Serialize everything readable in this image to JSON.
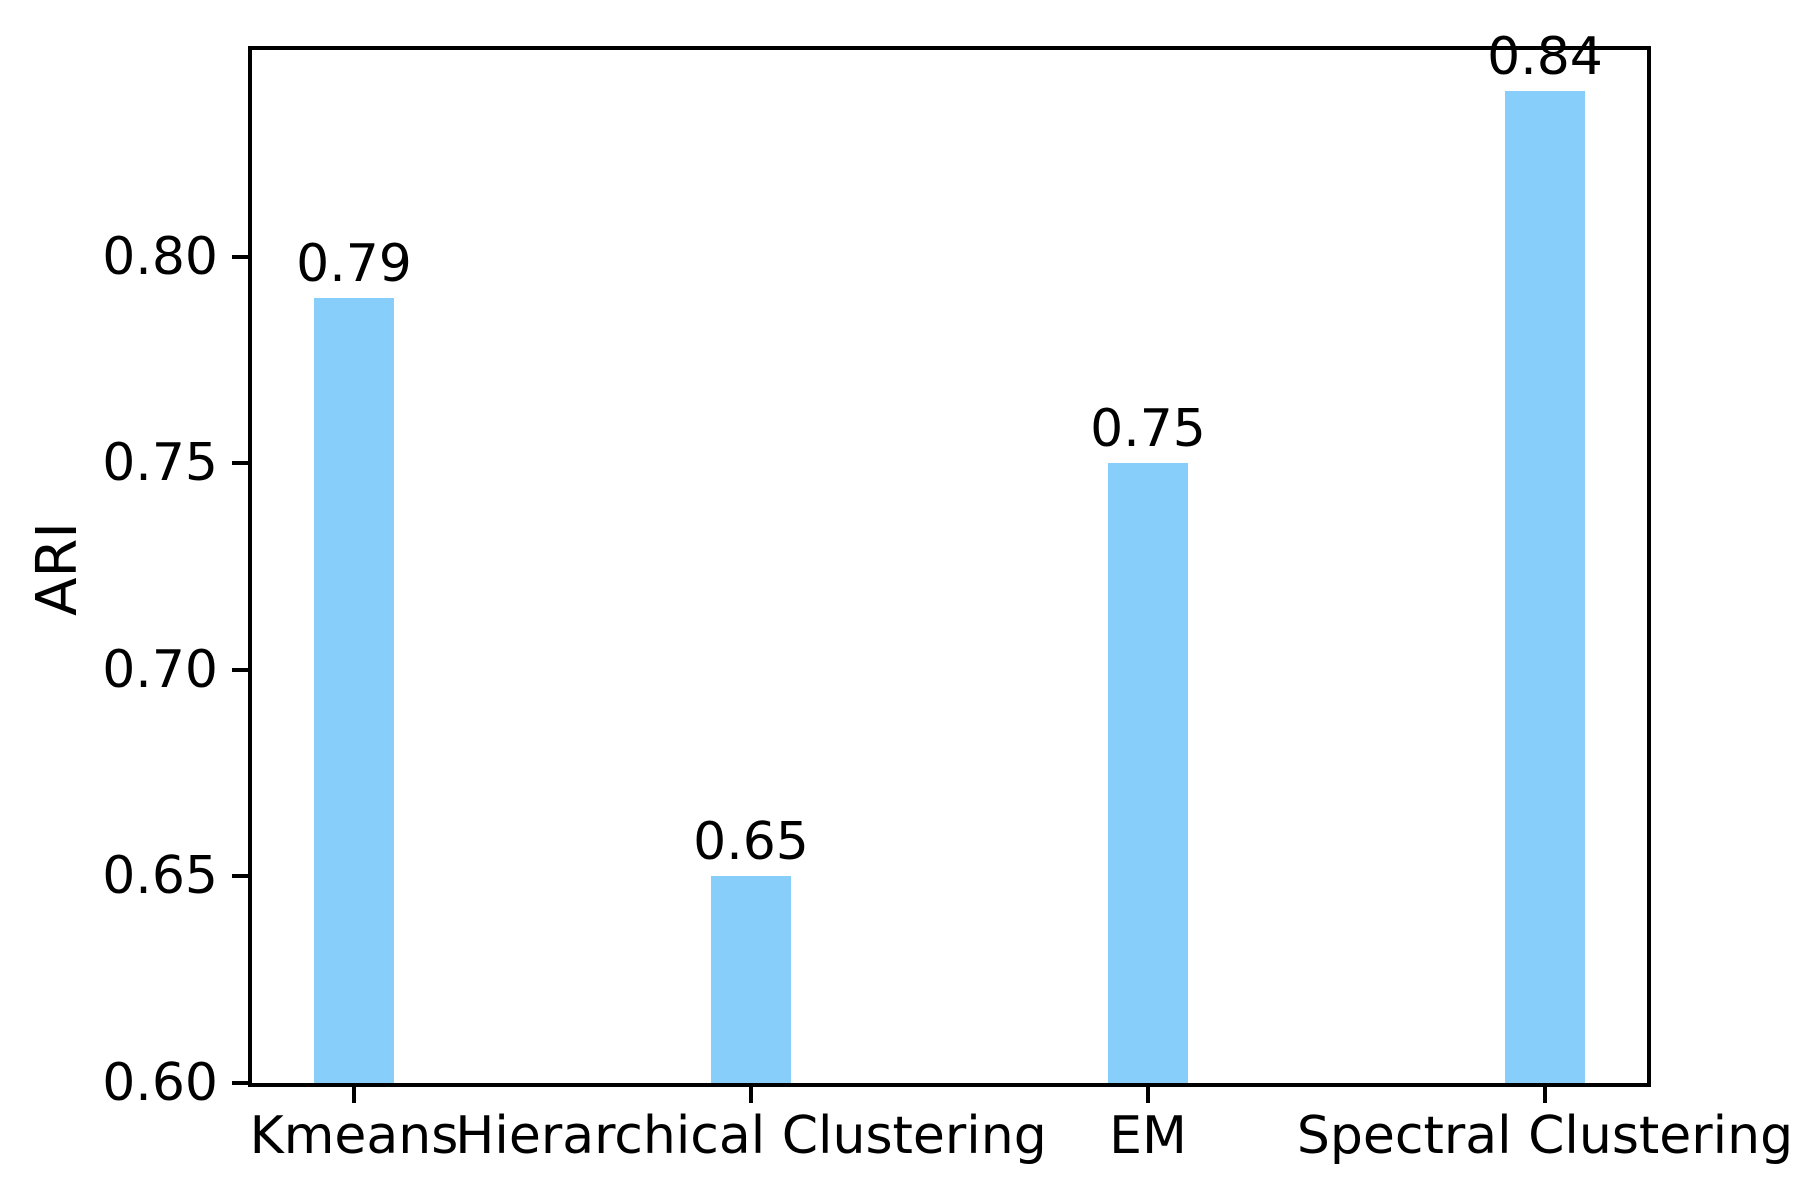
{
  "chart_data": {
    "type": "bar",
    "categories": [
      "Kmeans",
      "Hierarchical Clustering",
      "EM",
      "Spectral Clustering"
    ],
    "values": [
      0.79,
      0.65,
      0.75,
      0.84
    ],
    "value_labels": [
      "0.79",
      "0.65",
      "0.75",
      "0.84"
    ],
    "title": "",
    "xlabel": "",
    "ylabel": "ARI",
    "ylim": [
      0.6,
      0.85
    ],
    "yticks": [
      0.6,
      0.65,
      0.7,
      0.75,
      0.8
    ],
    "ytick_labels": [
      "0.60",
      "0.65",
      "0.70",
      "0.75",
      "0.80"
    ],
    "bar_color": "#87CEFA",
    "axis_color": "#000000",
    "text_color": "#000000",
    "background_color": "#FFFFFF",
    "grid": false,
    "legend_position": "none"
  }
}
